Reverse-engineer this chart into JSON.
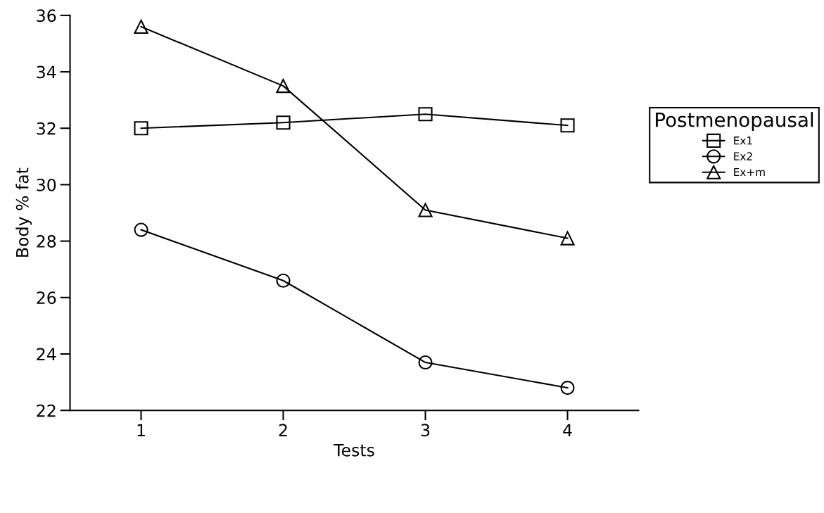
{
  "chart_data": {
    "type": "line",
    "xlabel": "Tests",
    "ylabel": "Body % fat",
    "legend_title": "Postmenopausal",
    "x": [
      1,
      2,
      3,
      4
    ],
    "series": [
      {
        "name": "Ex1",
        "color": "#000000",
        "marker": "square",
        "values": [
          32.0,
          32.2,
          32.5,
          32.1
        ]
      },
      {
        "name": "Ex2",
        "color": "#000000",
        "marker": "circle",
        "values": [
          28.4,
          26.6,
          23.7,
          22.8
        ]
      },
      {
        "name": "Ex+m",
        "color": "#000000",
        "marker": "triangle",
        "values": [
          35.6,
          33.5,
          29.1,
          28.1
        ]
      }
    ],
    "xlim": [
      0.5,
      4.5
    ],
    "xticks": [
      1,
      2,
      3,
      4
    ],
    "ylim": [
      22,
      36
    ],
    "yticks": [
      22,
      24,
      26,
      28,
      30,
      32,
      34,
      36
    ],
    "grid": false,
    "legend": "right",
    "line_style": "solid"
  }
}
